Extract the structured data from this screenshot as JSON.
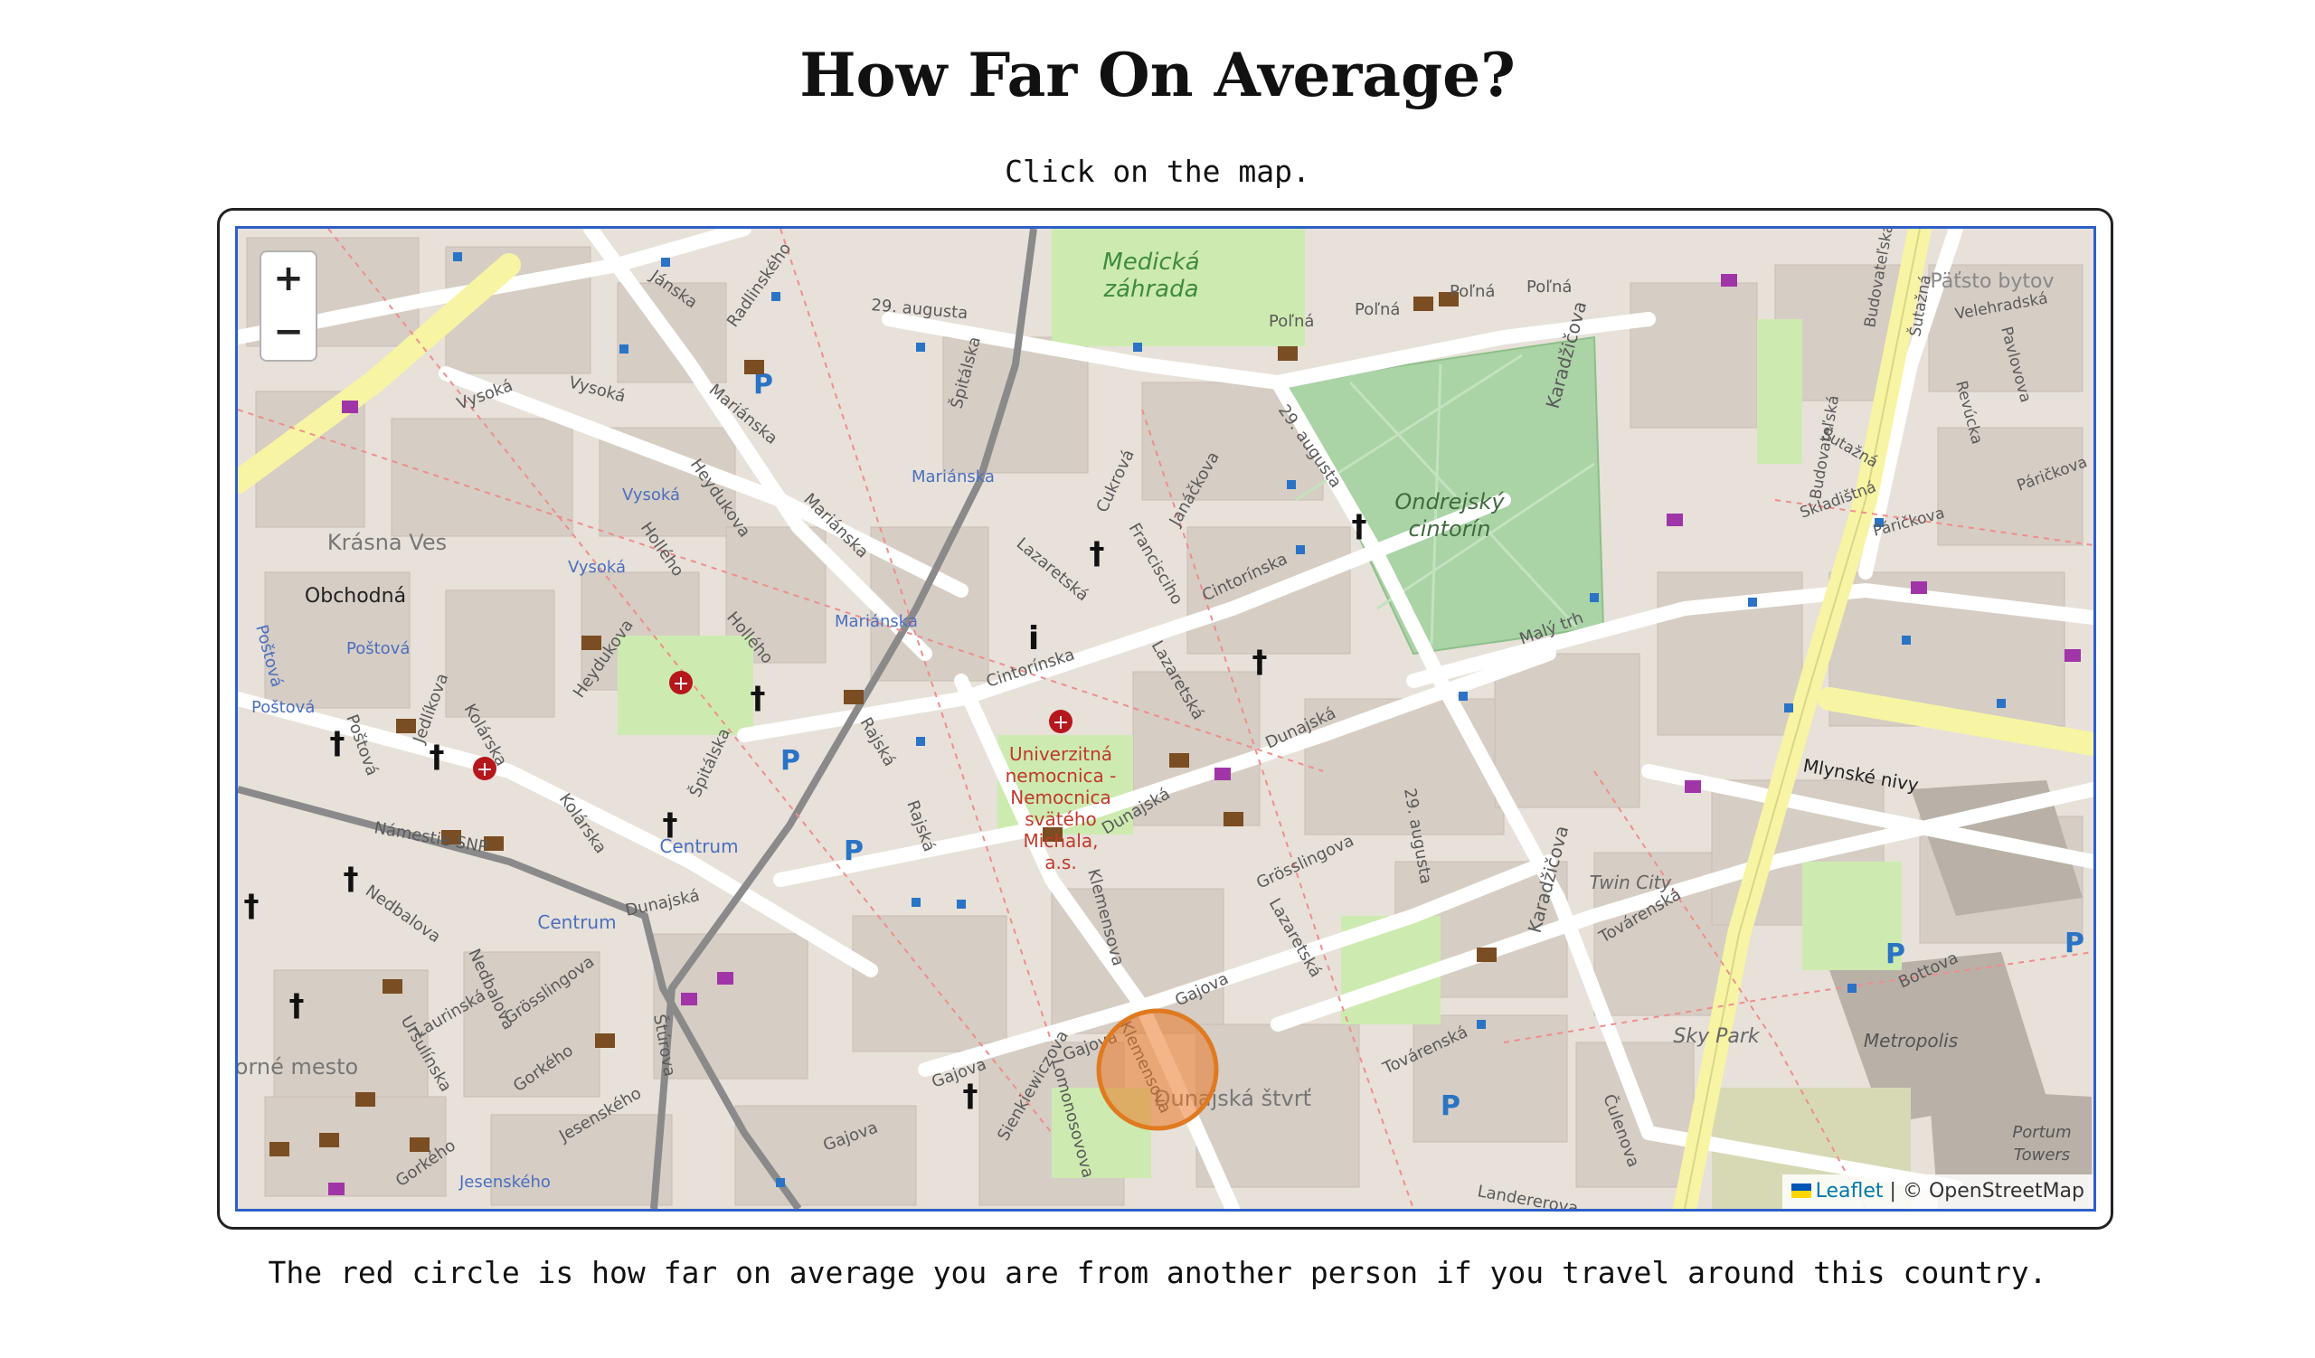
{
  "page": {
    "title": "How Far On Average?",
    "instruction": "Click on the map.",
    "footer": "The red circle is how far on average you are from another person if you travel around this country."
  },
  "map": {
    "zoom_in": "+",
    "zoom_out": "−",
    "attribution": {
      "leaflet": "Leaflet",
      "separator": " | ",
      "osm": "© OpenStreetMap"
    },
    "labels": {
      "medicka": "Medická",
      "zahrada": "záhrada",
      "ondrejsky": "Ondrejský",
      "cintorin": "cintorín",
      "krasna_ves": "Krásna Ves",
      "obchodna": "Obchodná",
      "univerzitna": "Univerzitná",
      "nemocnica1": "nemocnica -",
      "nemocnica2": "Nemocnica",
      "svateho": "svätého",
      "michala": "Michala,",
      "as": "a.s.",
      "centrum1": "Centrum",
      "centrum2": "Centrum",
      "twin_city": "Twin City",
      "sky_park": "Sky Park",
      "metropolis": "Metropolis",
      "portum": "Portum",
      "towers": "Towers",
      "dunajska_stvrt": "Dunajská štvrť",
      "patsto_bytov": "Päťsto bytov",
      "horne_mesto": "orné mesto",
      "namestie_snp": "Námestie SNP",
      "kolarska": "Kolárska",
      "vysoka": "Vysoká",
      "mariánska": "Mariánska",
      "heydukova": "Heydukova",
      "hollého": "Hollého",
      "spitalska": "Špitálska",
      "rajska": "Rajská",
      "cintorinska": "Cintorínska",
      "lazaretska": "Lazaretská",
      "dunajska": "Dunajská",
      "grosslingova": "Grösslingova",
      "klemensova": "Klemensova",
      "gajova": "Gajova",
      "lomonosovova": "Lomonosovova",
      "sienkiewiczova": "Sienkiewiczova",
      "29_augusta": "29. augusta",
      "polna": "Poľná",
      "karadzicova": "Karadžičova",
      "mlynske_nivy": "Mlynské nivy",
      "tovarenska": "Továrenská",
      "culenova": "Čulenova",
      "landererova": "Landererova",
      "bottova": "Bottova",
      "malý_trh": "Malý trh",
      "jesenskeho": "Jesenského",
      "gorkeho": "Gorkého",
      "laurinska": "Laurinská",
      "nedbalova": "Nedbalova",
      "ursulinska": "Uršulínska",
      "postova": "Poštová",
      "jedlikova": "Jedlíkova",
      "radlinskeho": "Radlinského",
      "janska": "Jánska",
      "cukrova": "Cukrová",
      "francisciho": "Francisciho",
      "janackova": "Janáčkova",
      "budovatelska": "Budovateľská",
      "sustekova": "Šutažná",
      "velehradska": "Velehradská",
      "revucka": "Revúcka",
      "pavlovova": "Pavlovova",
      "sklabinska": "Skladištná",
      "parickova": "Páričkova",
      "stumska": "Štúrova",
      "obchodna_street": "Obchodná",
      "parking": "P",
      "info": "i"
    }
  }
}
